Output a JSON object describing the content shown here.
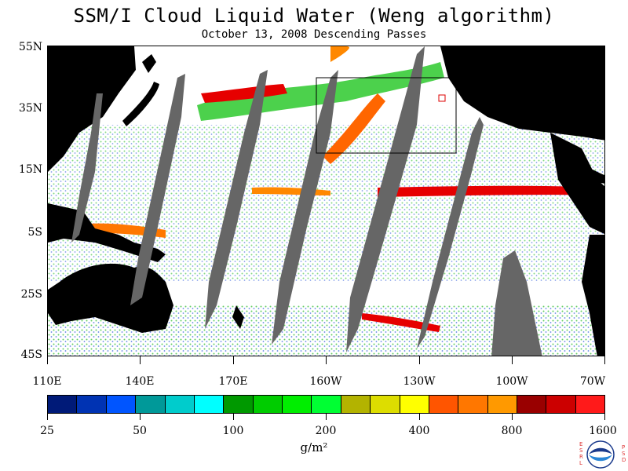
{
  "title": "SSM/I Cloud Liquid Water (Weng algorithm)",
  "subtitle": "October 13, 2008  Descending Passes",
  "lat_labels": [
    "55N",
    "35N",
    "15N",
    "5S",
    "25S",
    "45S"
  ],
  "lon_labels": [
    "110E",
    "140E",
    "170E",
    "160W",
    "130W",
    "100W",
    "70W"
  ],
  "colorbar": {
    "colors": [
      "#001a78",
      "#0033b3",
      "#0055ff",
      "#009999",
      "#00cccc",
      "#00ffff",
      "#009900",
      "#00cc00",
      "#00ee00",
      "#00ff33",
      "#b3b300",
      "#dddd00",
      "#ffff00",
      "#ff5500",
      "#ff7700",
      "#ff9900",
      "#990000",
      "#cc0000",
      "#ff1a1a"
    ],
    "tick_labels": [
      "25",
      "50",
      "100",
      "200",
      "400",
      "800",
      "1600"
    ]
  },
  "units": "g/m²",
  "logo": {
    "left_letters": "ESRL",
    "right_letters": "PSD",
    "center_text": "NOAA"
  },
  "colors": {
    "land": "#000000",
    "swath_gap": "#666666",
    "ocean_clear": "#ffffff"
  }
}
